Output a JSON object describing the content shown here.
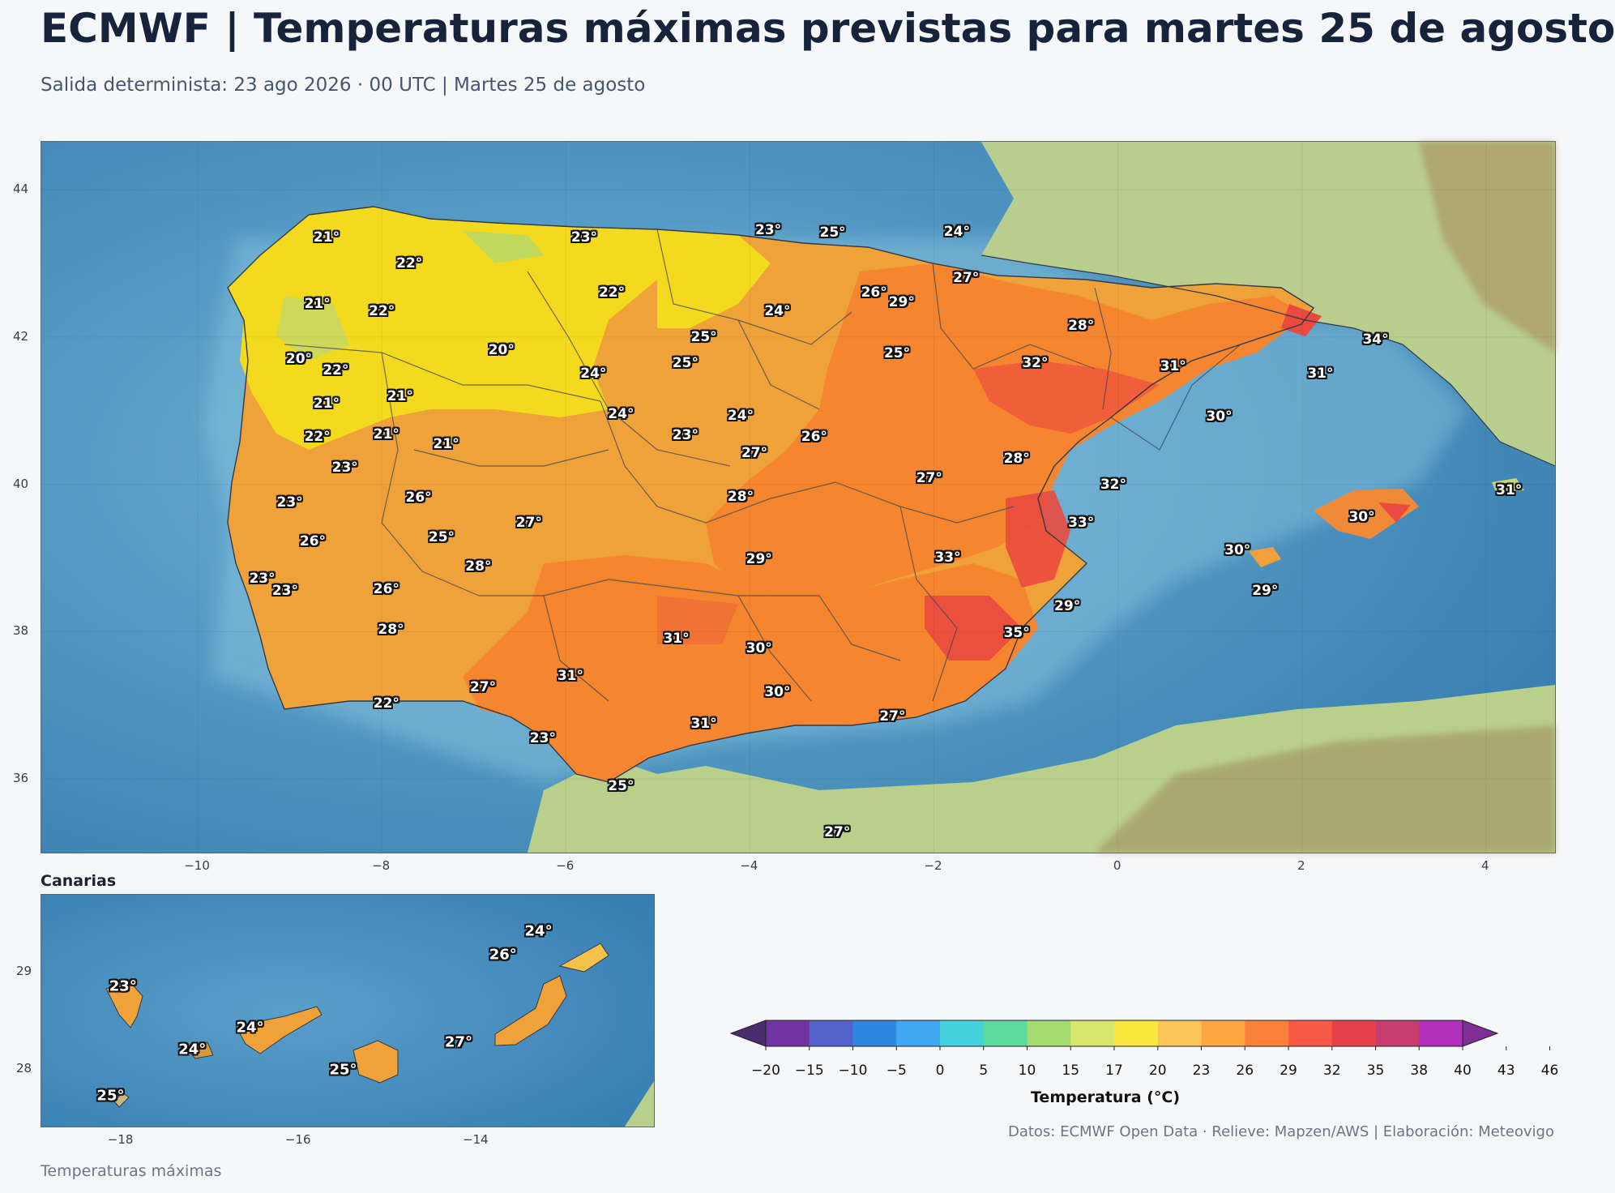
{
  "header": {
    "title": "ECMWF | Temperaturas máximas previstas para martes 25 de agosto",
    "subtitle": "Salida determinista: 23 ago 2026 · 00 UTC  |  Martes 25 de agosto"
  },
  "main_map": {
    "lon_ticks": [
      "−10",
      "−8",
      "−6",
      "−4",
      "−2",
      "0",
      "2",
      "4"
    ],
    "lat_ticks": [
      "44",
      "42",
      "40",
      "38",
      "36"
    ],
    "labels": [
      {
        "lon": -8.6,
        "lat": 43.35,
        "text": "21°"
      },
      {
        "lon": -7.7,
        "lat": 43.0,
        "text": "22°"
      },
      {
        "lon": -5.8,
        "lat": 43.35,
        "text": "23°"
      },
      {
        "lon": -3.8,
        "lat": 43.45,
        "text": "23°"
      },
      {
        "lon": -3.1,
        "lat": 43.42,
        "text": "25°"
      },
      {
        "lon": -1.75,
        "lat": 43.43,
        "text": "24°"
      },
      {
        "lon": -8.7,
        "lat": 42.45,
        "text": "21°"
      },
      {
        "lon": -8.0,
        "lat": 42.35,
        "text": "22°"
      },
      {
        "lon": -5.5,
        "lat": 42.6,
        "text": "22°"
      },
      {
        "lon": -2.65,
        "lat": 42.6,
        "text": "26°"
      },
      {
        "lon": -2.35,
        "lat": 42.47,
        "text": "29°"
      },
      {
        "lon": -1.65,
        "lat": 42.8,
        "text": "27°"
      },
      {
        "lon": -3.7,
        "lat": 42.35,
        "text": "24°"
      },
      {
        "lon": -4.5,
        "lat": 42.0,
        "text": "25°"
      },
      {
        "lon": -0.4,
        "lat": 42.15,
        "text": "28°"
      },
      {
        "lon": 2.8,
        "lat": 41.97,
        "text": "34°"
      },
      {
        "lon": -8.9,
        "lat": 41.7,
        "text": "20°"
      },
      {
        "lon": -8.5,
        "lat": 41.55,
        "text": "22°"
      },
      {
        "lon": -6.7,
        "lat": 41.82,
        "text": "20°"
      },
      {
        "lon": -4.7,
        "lat": 41.65,
        "text": "25°"
      },
      {
        "lon": -2.4,
        "lat": 41.78,
        "text": "25°"
      },
      {
        "lon": -0.9,
        "lat": 41.65,
        "text": "32°"
      },
      {
        "lon": 0.6,
        "lat": 41.6,
        "text": "31°"
      },
      {
        "lon": 2.2,
        "lat": 41.5,
        "text": "31°"
      },
      {
        "lon": -5.7,
        "lat": 41.5,
        "text": "24°"
      },
      {
        "lon": -7.8,
        "lat": 41.2,
        "text": "21°"
      },
      {
        "lon": -8.6,
        "lat": 41.1,
        "text": "21°"
      },
      {
        "lon": -5.4,
        "lat": 40.95,
        "text": "24°"
      },
      {
        "lon": -4.1,
        "lat": 40.93,
        "text": "24°"
      },
      {
        "lon": 1.1,
        "lat": 40.92,
        "text": "30°"
      },
      {
        "lon": -8.7,
        "lat": 40.65,
        "text": "22°"
      },
      {
        "lon": -7.95,
        "lat": 40.68,
        "text": "21°"
      },
      {
        "lon": -7.3,
        "lat": 40.55,
        "text": "21°"
      },
      {
        "lon": -4.7,
        "lat": 40.67,
        "text": "23°"
      },
      {
        "lon": -3.3,
        "lat": 40.65,
        "text": "26°"
      },
      {
        "lon": -3.95,
        "lat": 40.43,
        "text": "27°"
      },
      {
        "lon": -1.1,
        "lat": 40.35,
        "text": "28°"
      },
      {
        "lon": -8.4,
        "lat": 40.23,
        "text": "23°"
      },
      {
        "lon": -2.05,
        "lat": 40.08,
        "text": "27°"
      },
      {
        "lon": -0.05,
        "lat": 40.0,
        "text": "32°"
      },
      {
        "lon": 4.25,
        "lat": 39.92,
        "text": "31°"
      },
      {
        "lon": -7.6,
        "lat": 39.82,
        "text": "26°"
      },
      {
        "lon": -4.1,
        "lat": 39.83,
        "text": "28°"
      },
      {
        "lon": -9.0,
        "lat": 39.75,
        "text": "23°"
      },
      {
        "lon": -6.4,
        "lat": 39.48,
        "text": "27°"
      },
      {
        "lon": -0.4,
        "lat": 39.48,
        "text": "33°"
      },
      {
        "lon": 2.65,
        "lat": 39.55,
        "text": "30°"
      },
      {
        "lon": -7.35,
        "lat": 39.28,
        "text": "25°"
      },
      {
        "lon": -8.75,
        "lat": 39.22,
        "text": "26°"
      },
      {
        "lon": 1.3,
        "lat": 39.1,
        "text": "30°"
      },
      {
        "lon": -3.9,
        "lat": 38.98,
        "text": "29°"
      },
      {
        "lon": -1.85,
        "lat": 39.0,
        "text": "33°"
      },
      {
        "lon": -6.95,
        "lat": 38.88,
        "text": "28°"
      },
      {
        "lon": -9.3,
        "lat": 38.72,
        "text": "23°"
      },
      {
        "lon": -9.05,
        "lat": 38.55,
        "text": "23°"
      },
      {
        "lon": -7.95,
        "lat": 38.58,
        "text": "26°"
      },
      {
        "lon": 1.6,
        "lat": 38.55,
        "text": "29°"
      },
      {
        "lon": -0.55,
        "lat": 38.35,
        "text": "29°"
      },
      {
        "lon": -7.9,
        "lat": 38.03,
        "text": "28°"
      },
      {
        "lon": -1.1,
        "lat": 37.98,
        "text": "35°"
      },
      {
        "lon": -4.8,
        "lat": 37.9,
        "text": "31°"
      },
      {
        "lon": -3.9,
        "lat": 37.77,
        "text": "30°"
      },
      {
        "lon": -5.95,
        "lat": 37.4,
        "text": "31°"
      },
      {
        "lon": -6.9,
        "lat": 37.25,
        "text": "27°"
      },
      {
        "lon": -3.7,
        "lat": 37.18,
        "text": "30°"
      },
      {
        "lon": -7.95,
        "lat": 37.02,
        "text": "22°"
      },
      {
        "lon": -4.5,
        "lat": 36.75,
        "text": "31°"
      },
      {
        "lon": -2.45,
        "lat": 36.85,
        "text": "27°"
      },
      {
        "lon": -6.25,
        "lat": 36.55,
        "text": "23°"
      },
      {
        "lon": -5.4,
        "lat": 35.9,
        "text": "25°"
      },
      {
        "lon": -3.05,
        "lat": 35.28,
        "text": "27°"
      }
    ]
  },
  "inset": {
    "title": "Canarias",
    "lon_ticks": [
      "−18",
      "−16",
      "−14"
    ],
    "lat_ticks": [
      "29",
      "28"
    ],
    "labels": [
      {
        "lon": -17.98,
        "lat": 28.85,
        "text": "23°"
      },
      {
        "lon": -17.2,
        "lat": 28.2,
        "text": "24°"
      },
      {
        "lon": -16.55,
        "lat": 28.42,
        "text": "24°"
      },
      {
        "lon": -15.5,
        "lat": 27.99,
        "text": "25°"
      },
      {
        "lon": -14.2,
        "lat": 28.27,
        "text": "27°"
      },
      {
        "lon": -13.7,
        "lat": 29.18,
        "text": "26°"
      },
      {
        "lon": -13.3,
        "lat": 29.42,
        "text": "24°"
      },
      {
        "lon": -18.12,
        "lat": 27.72,
        "text": "25°"
      }
    ]
  },
  "colorbar": {
    "title": "Temperatura (°C)",
    "ticks": [
      "−20",
      "−15",
      "−10",
      "−5",
      "0",
      "5",
      "10",
      "15",
      "17",
      "20",
      "23",
      "26",
      "29",
      "32",
      "35",
      "38",
      "40",
      "43",
      "46"
    ],
    "colors": [
      "#4b2c6d",
      "#7033a0",
      "#5563cc",
      "#3186df",
      "#41a7f3",
      "#45d1de",
      "#5dd89e",
      "#a5dc6f",
      "#d7e66d",
      "#f8e83b",
      "#fcc65a",
      "#fca743",
      "#fa813a",
      "#f75a45",
      "#e8404a",
      "#c83d70",
      "#b12fba",
      "#7d2f95"
    ]
  },
  "footer": {
    "source": "Datos: ECMWF Open Data · Relieve: Mapzen/AWS  |  Elaboración: Meteovigo",
    "caption": "Temperaturas máximas"
  }
}
